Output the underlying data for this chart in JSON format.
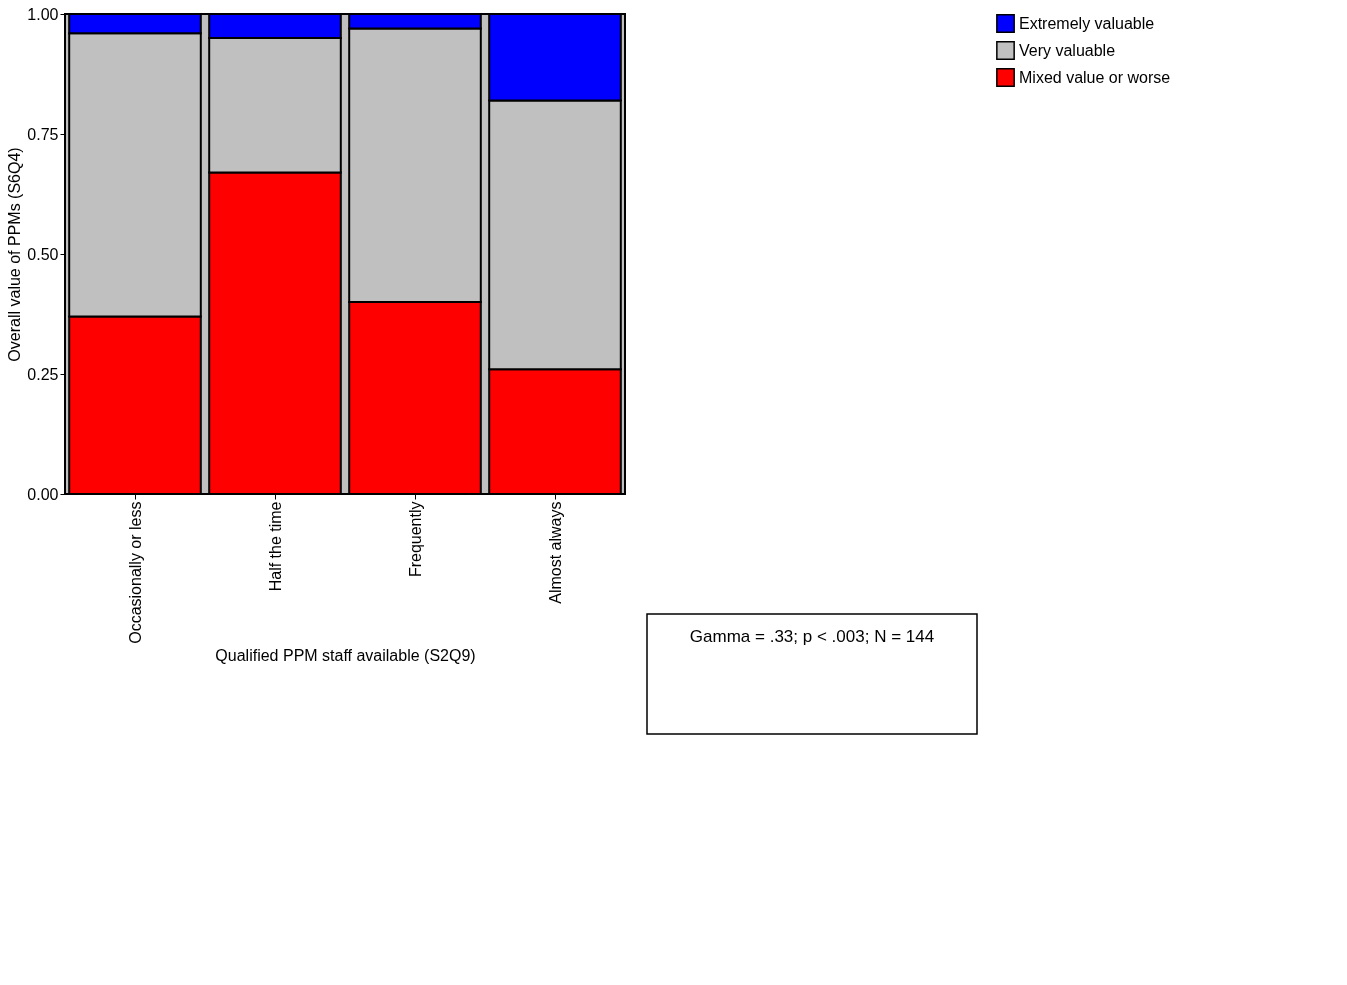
{
  "chart_data": {
    "type": "bar",
    "stacked": true,
    "xlabel": "Qualified PPM staff available (S2Q9)",
    "ylabel": "Overall value of PPMs (S6Q4)",
    "categories": [
      "Occasionally or less",
      "Half the time",
      "Frequently",
      "Almost always"
    ],
    "series": [
      {
        "name": "Mixed value or worse",
        "color": "#ff0000",
        "values": [
          0.37,
          0.67,
          0.4,
          0.26
        ]
      },
      {
        "name": "Very valuable",
        "color": "#c0c0c0",
        "values": [
          0.59,
          0.28,
          0.57,
          0.56
        ]
      },
      {
        "name": "Extremely valuable",
        "color": "#0000ff",
        "values": [
          0.04,
          0.05,
          0.03,
          0.18
        ]
      }
    ],
    "ylim": [
      0,
      1
    ],
    "yticks": [
      {
        "value": 0,
        "label": "0.00"
      },
      {
        "value": 0.25,
        "label": "0.25"
      },
      {
        "value": 0.5,
        "label": "0.50"
      },
      {
        "value": 0.75,
        "label": "0.75"
      },
      {
        "value": 1,
        "label": "1.00"
      }
    ],
    "grid": false,
    "legend": "right",
    "annotations": [
      "Gamma = .33; p < .003; N = 144"
    ]
  }
}
